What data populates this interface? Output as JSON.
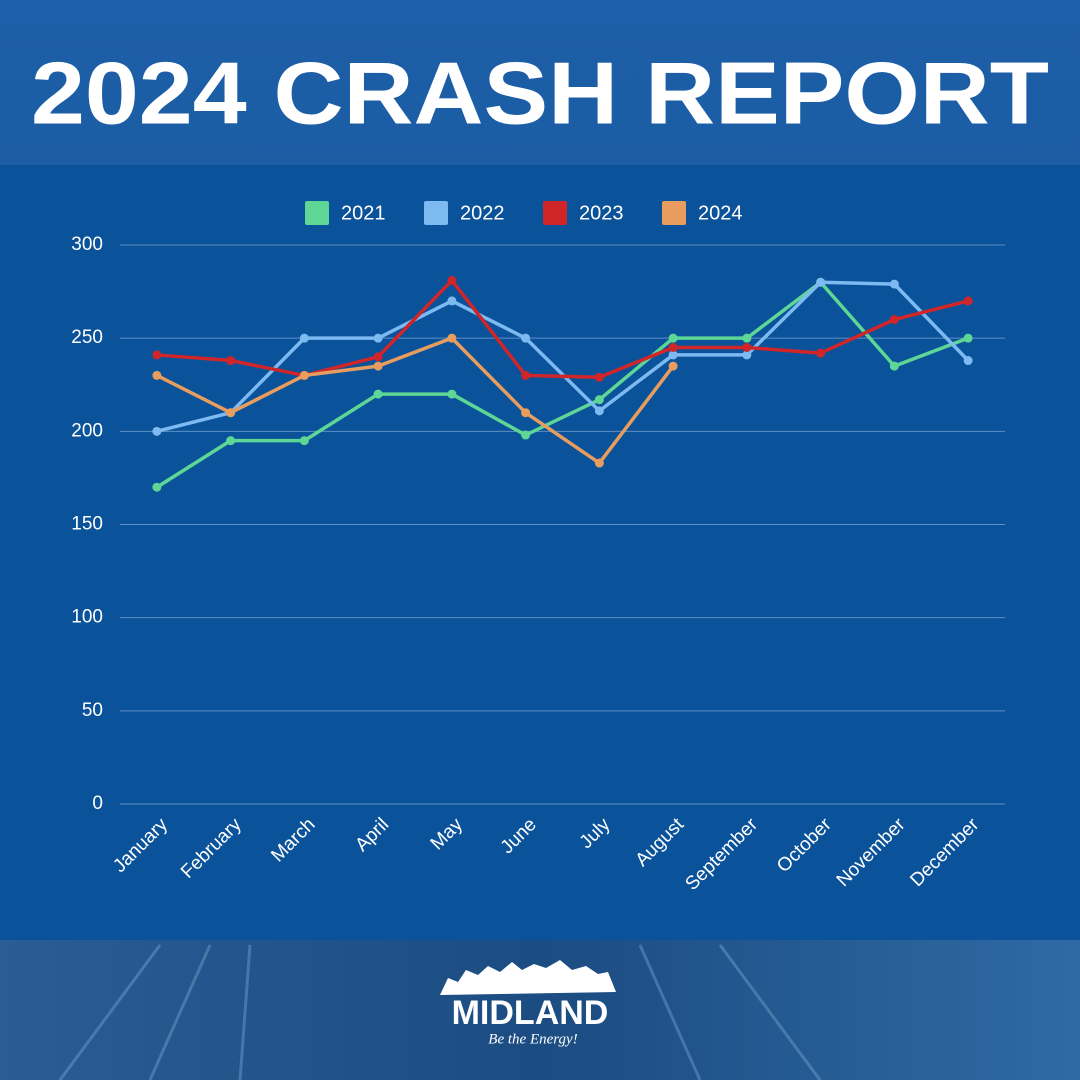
{
  "chart_data": {
    "type": "line",
    "title": "2024 CRASH REPORT",
    "categories": [
      "January",
      "February",
      "March",
      "April",
      "May",
      "June",
      "July",
      "August",
      "September",
      "October",
      "November",
      "December"
    ],
    "series": [
      {
        "name": "2021",
        "color": "#5ed695",
        "values": [
          170,
          195,
          195,
          220,
          220,
          198,
          217,
          250,
          250,
          280,
          235,
          250
        ]
      },
      {
        "name": "2022",
        "color": "#7dbaf2",
        "values": [
          200,
          210,
          250,
          250,
          270,
          250,
          211,
          241,
          241,
          280,
          279,
          238
        ]
      },
      {
        "name": "2023",
        "color": "#d0262a",
        "values": [
          241,
          238,
          230,
          240,
          281,
          230,
          229,
          245,
          245,
          242,
          260,
          270
        ]
      },
      {
        "name": "2024",
        "color": "#e89d5e",
        "values": [
          230,
          210,
          230,
          235,
          250,
          210,
          183,
          235,
          null,
          null,
          null,
          null
        ]
      }
    ],
    "ylim": [
      0,
      300
    ],
    "yticks": [
      0,
      50,
      100,
      150,
      200,
      250,
      300
    ],
    "grid": true,
    "legend": "top"
  },
  "logo": {
    "name": "MIDLAND",
    "tagline": "Be the Energy!"
  }
}
